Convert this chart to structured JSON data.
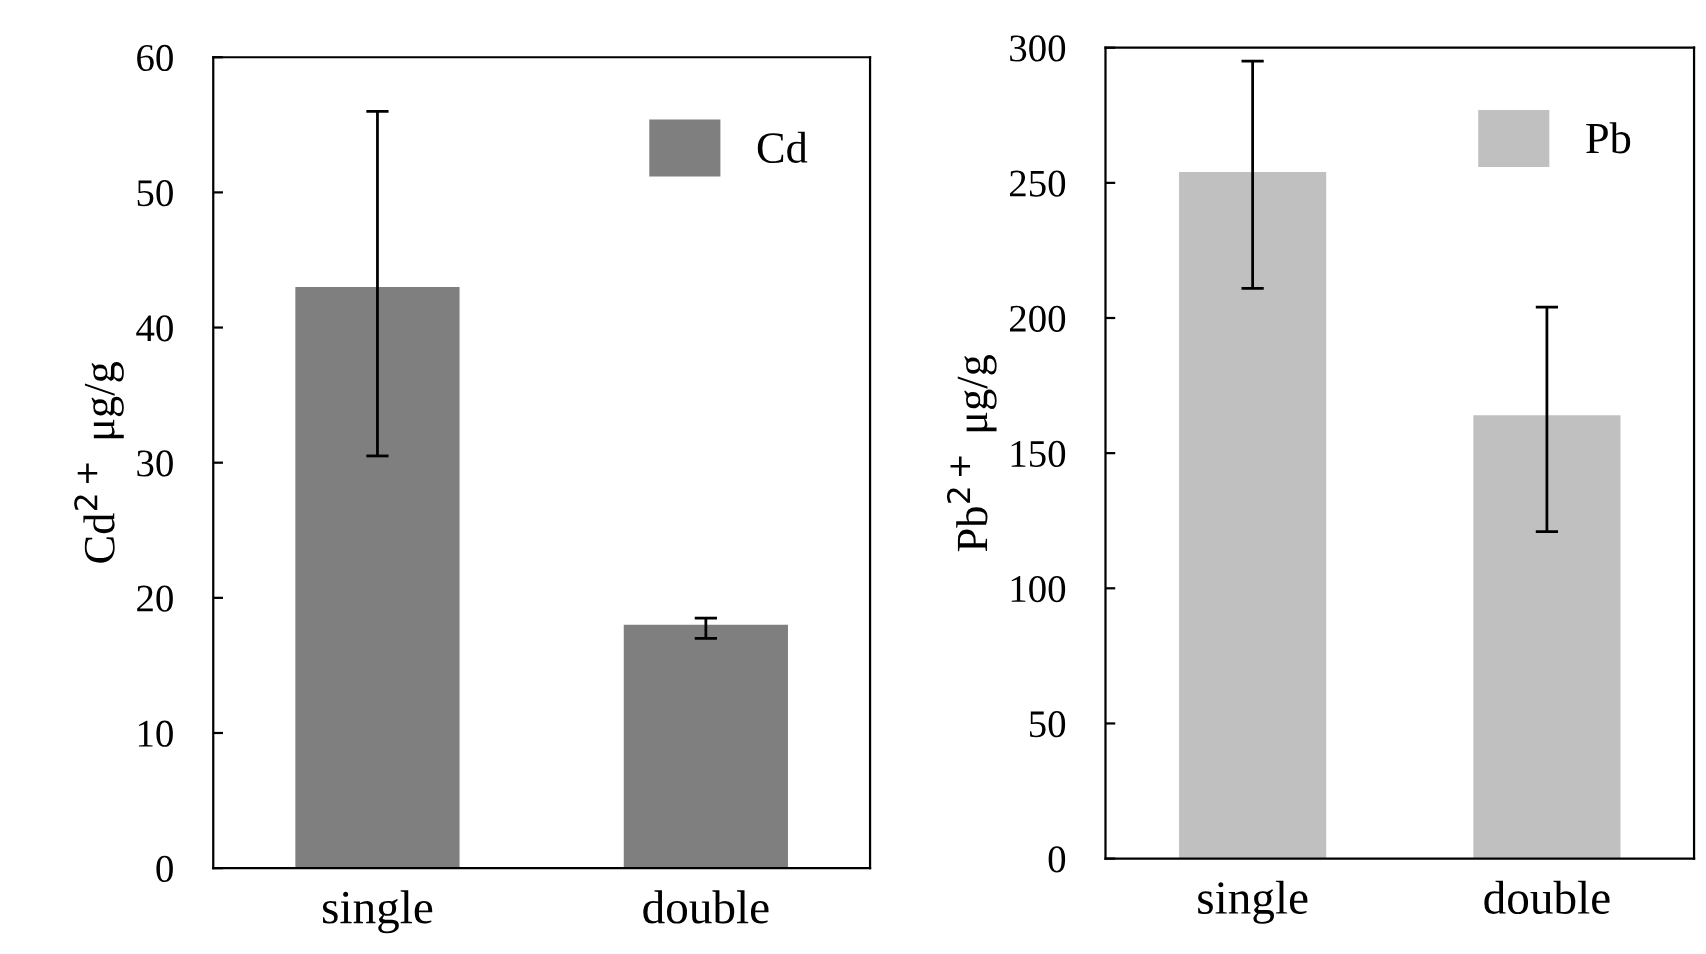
{
  "chart_data": [
    {
      "type": "bar",
      "categories": [
        "single",
        "double"
      ],
      "ylabel": "Cd$^{2+}$ μg/g",
      "ylim": [
        0,
        60
      ],
      "yticks": [
        0,
        10,
        20,
        30,
        40,
        50,
        60
      ],
      "legend": "top right",
      "grid": false,
      "series": [
        {
          "name": "Cd",
          "color": "#7f7f7f",
          "values": [
            43,
            18
          ],
          "errors": [
            [
              30.5,
              56
            ],
            [
              17,
              18.5
            ]
          ]
        }
      ]
    },
    {
      "type": "bar",
      "categories": [
        "single",
        "double"
      ],
      "ylabel": "Pb$^{2+}$ μg/g",
      "ylim": [
        0,
        300
      ],
      "yticks": [
        0,
        50,
        100,
        150,
        200,
        250,
        300
      ],
      "legend": "top right",
      "grid": false,
      "series": [
        {
          "name": "Pb",
          "color": "#c0c0c0",
          "values": [
            254,
            164
          ],
          "errors": [
            [
              211,
              295
            ],
            [
              121,
              204
            ]
          ]
        }
      ]
    }
  ]
}
